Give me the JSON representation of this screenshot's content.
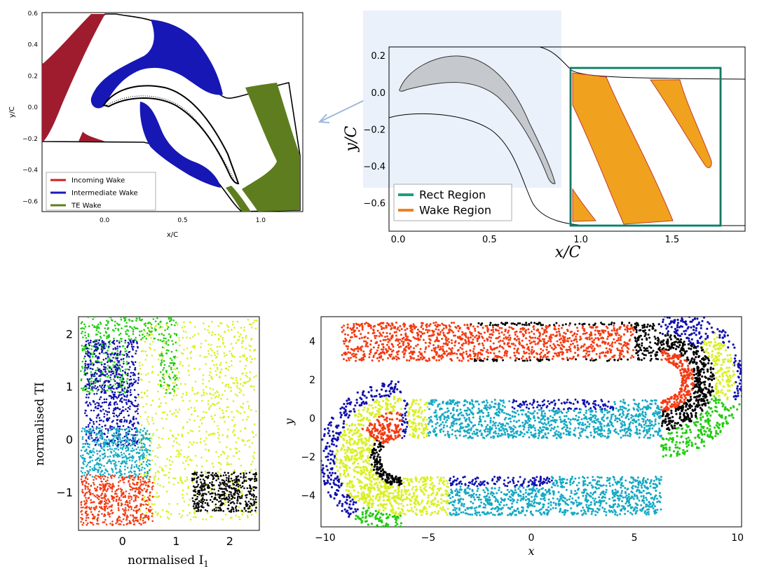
{
  "chart_data": [
    {
      "panel": "top-left",
      "type": "area",
      "xlabel": "x/C",
      "ylabel": "y/C",
      "xticks": [
        "0.0",
        "0.5",
        "1.0"
      ],
      "yticks": [
        "0.6",
        "0.4",
        "0.2",
        "0.0",
        "−0.2",
        "−0.4",
        "−0.6"
      ],
      "xlim": [
        -0.4,
        1.27
      ],
      "ylim": [
        -0.67,
        0.6
      ],
      "legend_position": "bottom-left",
      "series": [
        {
          "name": "Incoming Wake",
          "color": "#d11f1f"
        },
        {
          "name": "Intermediate Wake",
          "color": "#1a1ab8"
        },
        {
          "name": "TE Wake",
          "color": "#5e7d1f"
        }
      ]
    },
    {
      "panel": "top-right",
      "type": "area",
      "xlabel": "x/C",
      "ylabel": "y/C",
      "xticks": [
        "0.0",
        "0.5",
        "1.0",
        "1.5"
      ],
      "yticks": [
        "0.2",
        "0.0",
        "−0.2",
        "−0.4",
        "−0.6"
      ],
      "xlim": [
        -0.05,
        1.9
      ],
      "ylim": [
        -0.75,
        0.25
      ],
      "legend_position": "bottom-left",
      "series": [
        {
          "name": "Rect Region",
          "color": "#1a9f83"
        },
        {
          "name": "Wake Region",
          "color": "#f08020"
        }
      ],
      "rect_region": {
        "x": [
          0.95,
          1.75
        ],
        "y": [
          -0.72,
          0.07
        ]
      }
    },
    {
      "panel": "bottom-left",
      "type": "scatter",
      "xlabel": "normalised I",
      "xlabel_sub": "1",
      "ylabel": "normalised TI",
      "xticks": [
        "0",
        "1",
        "2"
      ],
      "yticks": [
        "2",
        "1",
        "0",
        "−1"
      ],
      "xlim": [
        -0.82,
        2.55
      ],
      "ylim": [
        -1.7,
        2.35
      ],
      "clusters": [
        "#22cc11",
        "#1010b0",
        "#15a9c4",
        "#d9f020",
        "#f43a12",
        "#000000"
      ]
    },
    {
      "panel": "bottom-right",
      "type": "scatter",
      "xlabel": "x",
      "ylabel": "y",
      "xticks": [
        "−10",
        "−5",
        "0",
        "5",
        "10"
      ],
      "yticks": [
        "4",
        "2",
        "0",
        "−2",
        "−4"
      ],
      "xlim": [
        -10.2,
        10.2
      ],
      "ylim": [
        -5.6,
        5.3
      ],
      "clusters": [
        "#22cc11",
        "#1010b0",
        "#15a9c4",
        "#d9f020",
        "#f43a12",
        "#000000"
      ]
    }
  ]
}
